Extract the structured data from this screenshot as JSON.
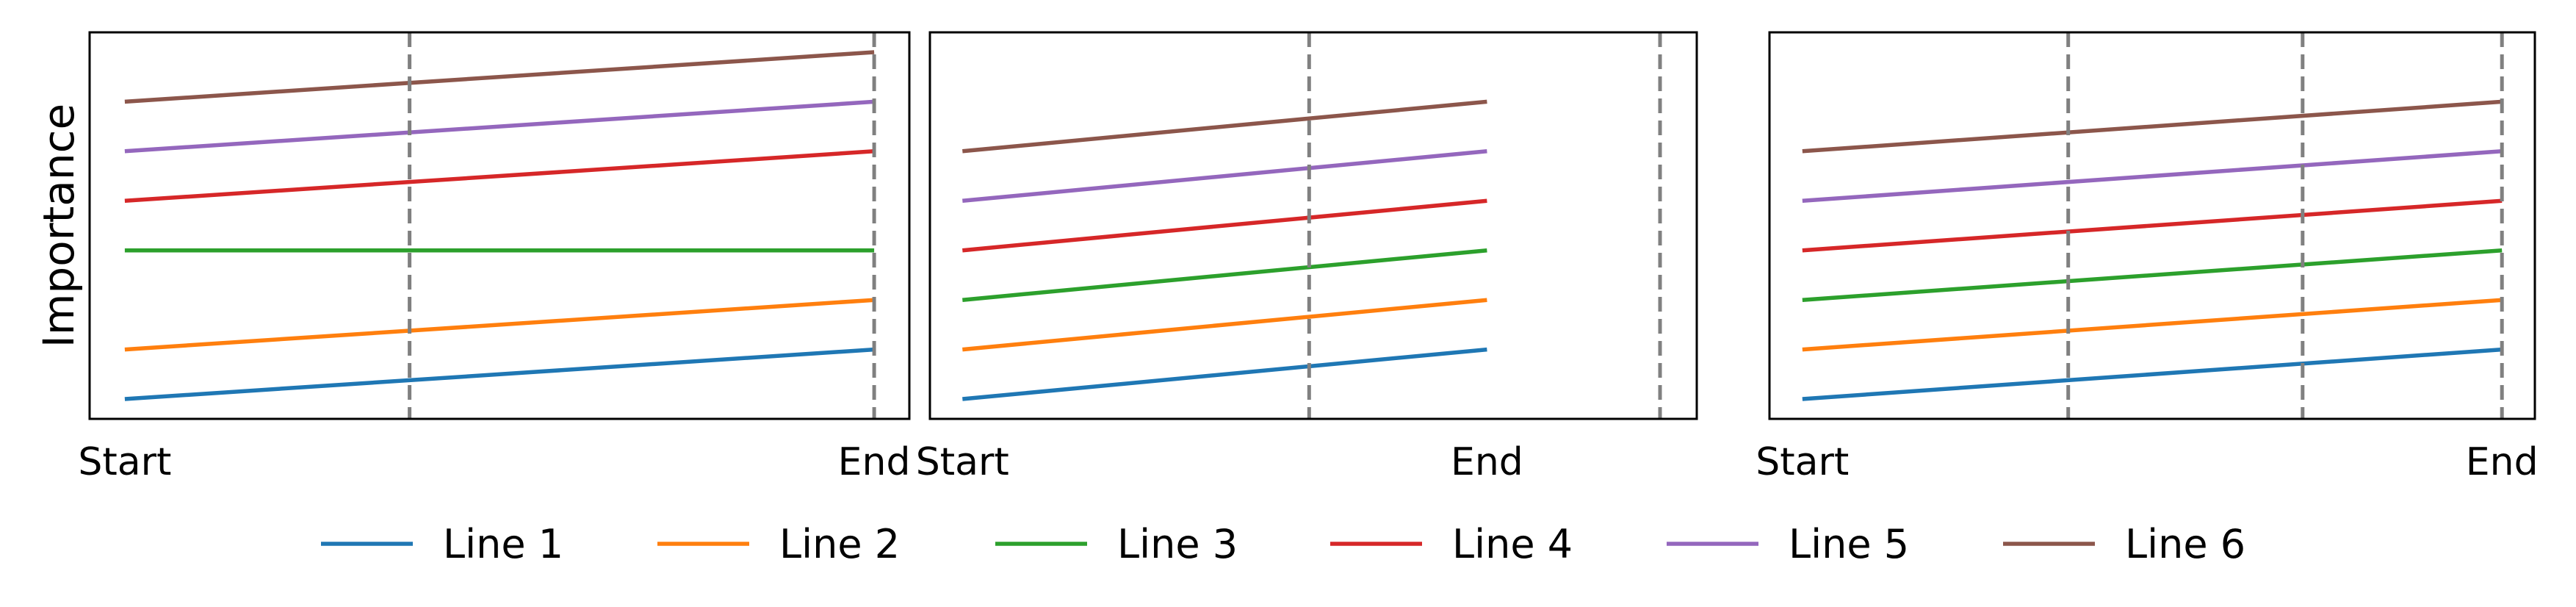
{
  "chart_data": [
    {
      "type": "line",
      "ylabel": "Importance",
      "x_tick_labels": [
        "Start",
        "End"
      ],
      "vertical_lines": [
        0.38,
        1.0
      ],
      "series": [
        {
          "name": "Line 1",
          "color": "#1f77b4",
          "x": [
            0,
            1
          ],
          "y": [
            0.0,
            1.0
          ]
        },
        {
          "name": "Line 2",
          "color": "#ff7f0e",
          "x": [
            0,
            1
          ],
          "y": [
            1.0,
            2.0
          ]
        },
        {
          "name": "Line 3",
          "color": "#2ca02c",
          "x": [
            0,
            1
          ],
          "y": [
            3.0,
            3.0
          ]
        },
        {
          "name": "Line 4",
          "color": "#d62728",
          "x": [
            0,
            1
          ],
          "y": [
            4.0,
            5.0
          ]
        },
        {
          "name": "Line 5",
          "color": "#9467bd",
          "x": [
            0,
            1
          ],
          "y": [
            5.0,
            6.0
          ]
        },
        {
          "name": "Line 6",
          "color": "#8c564b",
          "x": [
            0,
            1
          ],
          "y": [
            6.0,
            7.0
          ]
        }
      ],
      "xlim": [
        -0.047,
        1.047
      ],
      "ylim": [
        -0.4,
        7.4
      ],
      "grid": false
    },
    {
      "type": "line",
      "ylabel": "",
      "x_tick_labels": [
        "Start",
        "End"
      ],
      "vertical_lines": [
        0.661,
        1.33
      ],
      "series": [
        {
          "name": "Line 1",
          "color": "#1f77b4",
          "x": [
            0,
            1
          ],
          "y": [
            0.0,
            1.0
          ]
        },
        {
          "name": "Line 2",
          "color": "#ff7f0e",
          "x": [
            0,
            1
          ],
          "y": [
            1.0,
            2.0
          ]
        },
        {
          "name": "Line 3",
          "color": "#2ca02c",
          "x": [
            0,
            1
          ],
          "y": [
            2.0,
            3.0
          ]
        },
        {
          "name": "Line 4",
          "color": "#d62728",
          "x": [
            0,
            1
          ],
          "y": [
            3.0,
            4.0
          ]
        },
        {
          "name": "Line 5",
          "color": "#9467bd",
          "x": [
            0,
            1
          ],
          "y": [
            4.0,
            5.0
          ]
        },
        {
          "name": "Line 6",
          "color": "#8c564b",
          "x": [
            0,
            1
          ],
          "y": [
            5.0,
            6.0
          ]
        }
      ],
      "xlim": [
        -0.062,
        1.4
      ],
      "ylim": [
        -0.4,
        7.4
      ],
      "grid": false
    },
    {
      "type": "line",
      "ylabel": "",
      "x_tick_labels": [
        "Start",
        "End"
      ],
      "vertical_lines": [
        0.38,
        0.715,
        1.0
      ],
      "series": [
        {
          "name": "Line 1",
          "color": "#1f77b4",
          "x": [
            0,
            1
          ],
          "y": [
            0.0,
            1.0
          ]
        },
        {
          "name": "Line 2",
          "color": "#ff7f0e",
          "x": [
            0,
            1
          ],
          "y": [
            1.0,
            2.0
          ]
        },
        {
          "name": "Line 3",
          "color": "#2ca02c",
          "x": [
            0,
            1
          ],
          "y": [
            2.0,
            3.0
          ]
        },
        {
          "name": "Line 4",
          "color": "#d62728",
          "x": [
            0,
            1
          ],
          "y": [
            3.0,
            4.0
          ]
        },
        {
          "name": "Line 5",
          "color": "#9467bd",
          "x": [
            0,
            1
          ],
          "y": [
            4.0,
            5.0
          ]
        },
        {
          "name": "Line 6",
          "color": "#8c564b",
          "x": [
            0,
            1
          ],
          "y": [
            5.0,
            6.0
          ]
        }
      ],
      "xlim": [
        -0.047,
        1.047
      ],
      "ylim": [
        -0.4,
        7.4
      ],
      "grid": false
    }
  ],
  "legend": {
    "placement": "bottom-center",
    "entries": [
      {
        "label": "Line 1",
        "color": "#1f77b4"
      },
      {
        "label": "Line 2",
        "color": "#ff7f0e"
      },
      {
        "label": "Line 3",
        "color": "#2ca02c"
      },
      {
        "label": "Line 4",
        "color": "#d62728"
      },
      {
        "label": "Line 5",
        "color": "#9467bd"
      },
      {
        "label": "Line 6",
        "color": "#8c564b"
      }
    ]
  }
}
